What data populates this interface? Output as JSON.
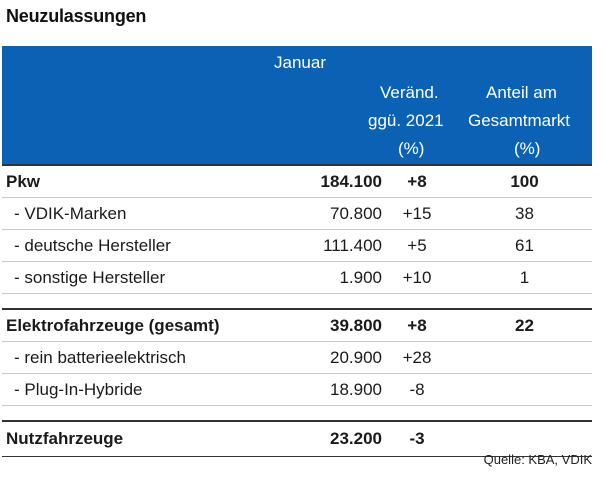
{
  "title": "Neuzulassungen",
  "header": {
    "col_month": "Januar",
    "col_change_l1": "Veränd.",
    "col_change_l2": "ggü. 2021",
    "col_change_l3": "(%)",
    "col_share_l1": "Anteil am",
    "col_share_l2": "Gesamtmarkt",
    "col_share_l3": "(%)"
  },
  "rows": [
    {
      "label": "Pkw",
      "value": "184.100",
      "change": "+8",
      "share": "100"
    },
    {
      "label": "- VDIK-Marken",
      "value": "70.800",
      "change": "+15",
      "share": "38"
    },
    {
      "label": "- deutsche Hersteller",
      "value": "111.400",
      "change": "+5",
      "share": "61"
    },
    {
      "label": "- sonstige Hersteller",
      "value": "1.900",
      "change": "+10",
      "share": "1"
    },
    {
      "label": "Elektrofahrzeuge (gesamt)",
      "value": "39.800",
      "change": "+8",
      "share": "22"
    },
    {
      "label": "- rein batterieelektrisch",
      "value": "20.900",
      "change": "+28",
      "share": ""
    },
    {
      "label": "- Plug-In-Hybride",
      "value": "18.900",
      "change": "-8",
      "share": ""
    },
    {
      "label": "Nutzfahrzeuge",
      "value": "23.200",
      "change": "-3",
      "share": ""
    }
  ],
  "source": "Quelle: KBA, VDIK"
}
